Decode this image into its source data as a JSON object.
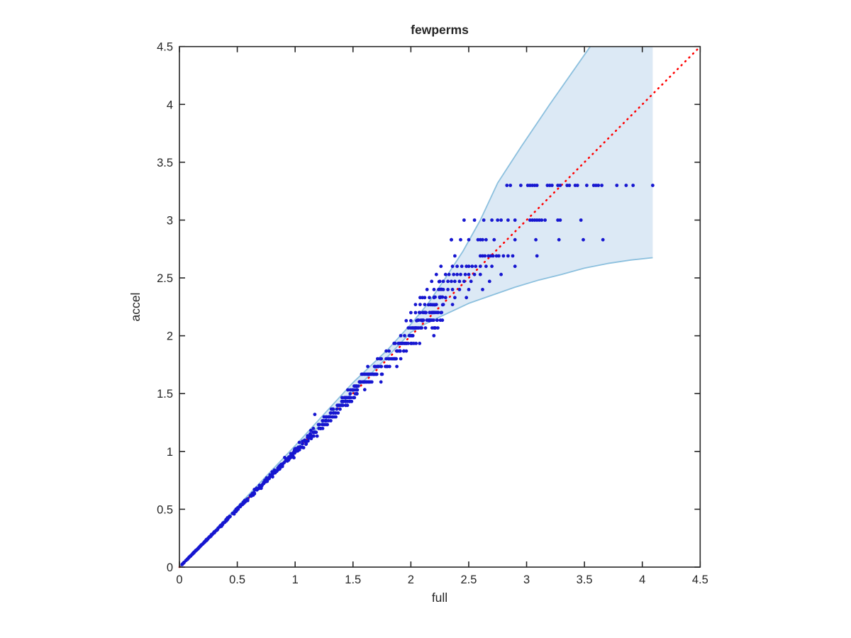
{
  "chart_data": {
    "type": "scatter",
    "title": "fewperms",
    "xlabel": "full",
    "ylabel": "accel",
    "xlim": [
      0,
      4.5
    ],
    "ylim": [
      0,
      4.5
    ],
    "grid": false,
    "legend": null,
    "xticks": [
      0,
      0.5,
      1,
      1.5,
      2,
      2.5,
      3,
      3.5,
      4,
      4.5
    ],
    "yticks": [
      0,
      0.5,
      1,
      1.5,
      2,
      2.5,
      3,
      3.5,
      4,
      4.5
    ],
    "xtick_labels": [
      "0",
      "0.5",
      "1",
      "1.5",
      "2",
      "2.5",
      "3",
      "3.5",
      "4",
      "4.5"
    ],
    "ytick_labels": [
      "0",
      "0.5",
      "1",
      "1.5",
      "2",
      "2.5",
      "3",
      "3.5",
      "4",
      "4.5"
    ],
    "colors": {
      "scatter": "#1616d0",
      "reference_line": "#ff0000",
      "band_fill": "#dce9f5",
      "band_edge": "#8cc0de",
      "axis": "#262626",
      "background": "#ffffff"
    },
    "reference_line": {
      "style": "dotted",
      "from": [
        0,
        0
      ],
      "to": [
        4.5,
        4.5
      ]
    },
    "confidence_band": {
      "upper": [
        [
          0,
          0
        ],
        [
          0.5,
          0.522
        ],
        [
          1.0,
          1.05
        ],
        [
          1.5,
          1.595
        ],
        [
          1.8,
          1.88
        ],
        [
          2.0,
          2.1
        ],
        [
          2.15,
          2.28
        ],
        [
          2.3,
          2.5
        ],
        [
          2.45,
          2.73
        ],
        [
          2.6,
          3.0
        ],
        [
          2.75,
          3.32
        ],
        [
          2.95,
          3.63
        ],
        [
          3.2,
          4.0
        ],
        [
          3.55,
          4.5
        ]
      ],
      "lower": [
        [
          0,
          0
        ],
        [
          0.5,
          0.506
        ],
        [
          1.0,
          1.012
        ],
        [
          1.5,
          1.515
        ],
        [
          1.8,
          1.82
        ],
        [
          2.0,
          2.03
        ],
        [
          2.1,
          2.09
        ],
        [
          2.2,
          2.14
        ],
        [
          2.35,
          2.21
        ],
        [
          2.5,
          2.28
        ],
        [
          2.7,
          2.35
        ],
        [
          2.9,
          2.42
        ],
        [
          3.1,
          2.48
        ],
        [
          3.3,
          2.53
        ],
        [
          3.5,
          2.585
        ],
        [
          3.7,
          2.625
        ],
        [
          3.9,
          2.655
        ],
        [
          4.09,
          2.675
        ]
      ],
      "right_cutoff_x": 4.09,
      "top_clip_y": 4.5
    },
    "scatter_rows": [
      {
        "y": 3.3,
        "x": [
          2.83,
          2.86,
          2.95,
          3.01,
          3.03,
          3.05,
          3.07,
          3.09,
          3.18,
          3.2,
          3.22,
          3.27,
          3.29,
          3.35,
          3.37,
          3.42,
          3.44,
          3.52,
          3.58,
          3.6,
          3.62,
          3.65,
          3.78,
          3.86,
          3.92,
          4.09
        ]
      },
      {
        "y": 3.0,
        "x": [
          2.46,
          2.55,
          2.63,
          2.7,
          2.75,
          2.78,
          2.84,
          2.9,
          3.03,
          3.05,
          3.07,
          3.09,
          3.11,
          3.13,
          3.16,
          3.27,
          3.29,
          3.47
        ]
      },
      {
        "y": 2.83,
        "x": [
          2.35,
          2.43,
          2.5,
          2.58,
          2.6,
          2.62,
          2.65,
          2.72,
          2.9,
          3.08,
          3.28,
          3.49,
          3.66
        ]
      },
      {
        "y": 2.69,
        "x": [
          2.38,
          2.6,
          2.62,
          2.64,
          2.67,
          2.69,
          2.71,
          2.74,
          2.76,
          2.8,
          2.84,
          2.88,
          3.09
        ]
      },
      {
        "y": 2.6,
        "x": [
          2.26,
          2.36,
          2.4,
          2.44,
          2.48,
          2.5,
          2.53,
          2.56,
          2.6,
          2.65,
          2.7,
          2.9
        ]
      },
      {
        "y": 2.53,
        "x": [
          2.22,
          2.3,
          2.33,
          2.37,
          2.4,
          2.43,
          2.47,
          2.5,
          2.55,
          2.6,
          2.78
        ]
      },
      {
        "y": 2.47,
        "x": [
          2.18,
          2.25,
          2.28,
          2.32,
          2.35,
          2.38,
          2.42,
          2.46,
          2.52,
          2.68
        ]
      },
      {
        "y": 2.4,
        "x": [
          2.14,
          2.2,
          2.24,
          2.28,
          2.32,
          2.36,
          2.42,
          2.5,
          2.62
        ]
      },
      {
        "y": 2.33,
        "x": [
          2.08,
          2.12,
          2.16,
          2.2,
          2.25,
          2.3,
          2.38,
          2.48
        ]
      },
      {
        "y": 2.27,
        "x": [
          2.04,
          2.08,
          2.12,
          2.17,
          2.22,
          2.28,
          2.36
        ]
      },
      {
        "y": 2.2,
        "x": [
          2.0,
          2.04,
          2.08,
          2.13,
          2.18,
          2.26
        ]
      },
      {
        "y": 2.13,
        "x": [
          1.96,
          2.0,
          2.05,
          2.1,
          2.16
        ]
      }
    ],
    "extra_points": [
      [
        1.17,
        1.32
      ],
      [
        2.35,
        2.83
      ],
      [
        2.1,
        2.33
      ]
    ],
    "dense_cluster": {
      "count": 620,
      "x_min": 0.02,
      "x_max": 2.28,
      "seed": 42,
      "noise_base": 0.01,
      "noise_growth": 0.026,
      "noise_power": 1.8,
      "quantize": [
        {
          "above_x": 1.55,
          "quantum": 0.0667
        },
        {
          "above_x": 1.15,
          "quantum": 0.0333
        }
      ]
    },
    "marker_radius_px": 2.4
  }
}
